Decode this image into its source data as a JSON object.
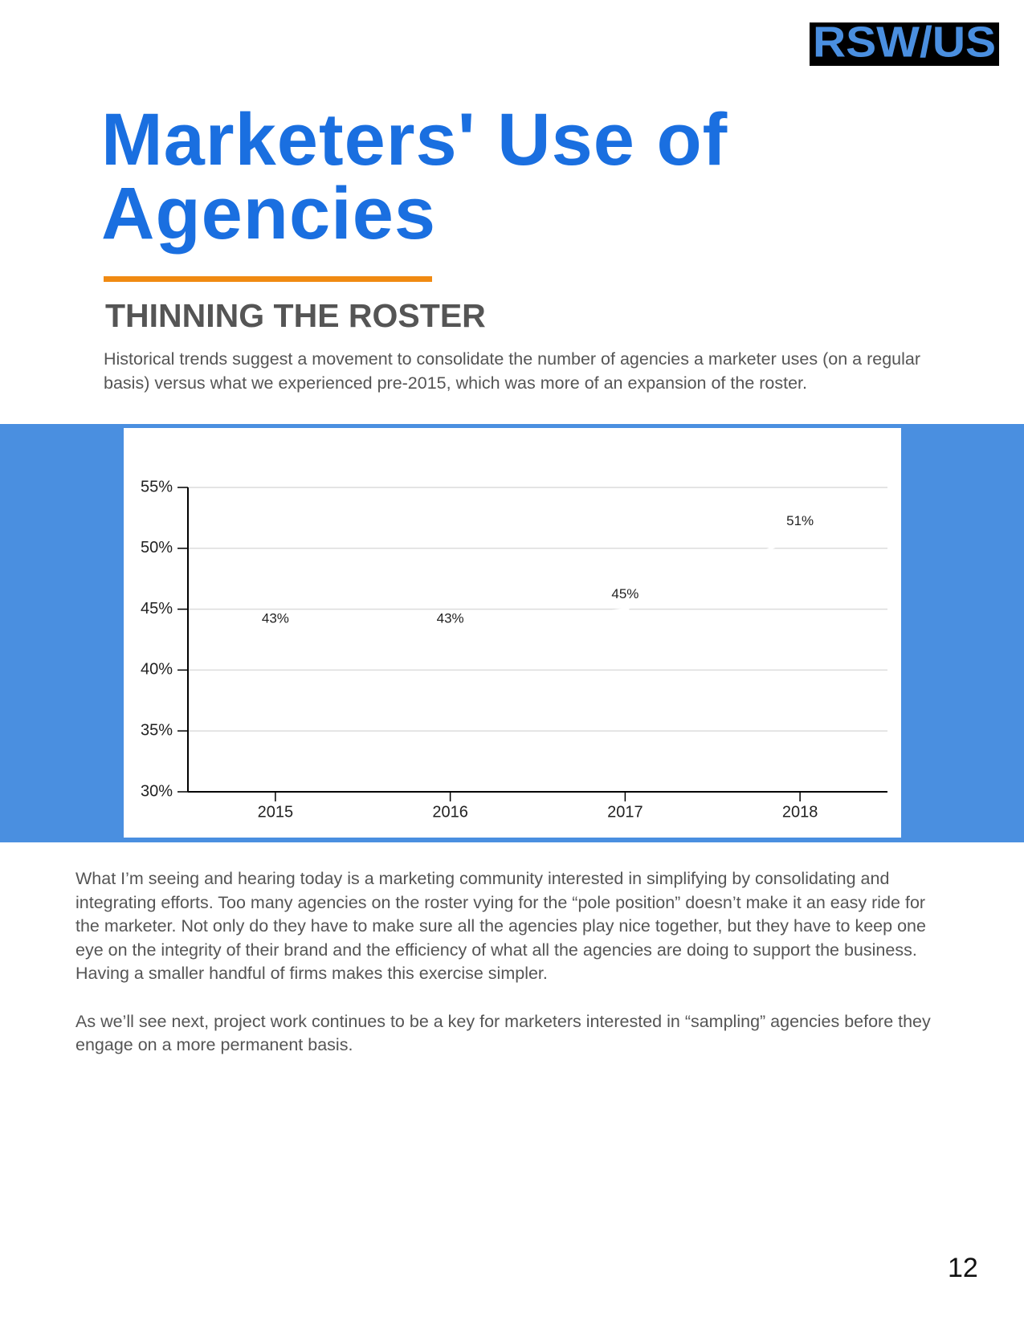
{
  "logo": "RSW/US",
  "title_lines": [
    "Marketers' Use of",
    "Agencies"
  ],
  "subtitle": "THINNING THE ROSTER",
  "intro": "Historical trends suggest a movement to consolidate the number of agencies a marketer uses (on a regular basis) versus what we experienced pre-2015, which was more of an expansion of the roster.",
  "chart_data": {
    "type": "line",
    "categories": [
      "2015",
      "2016",
      "2017",
      "2018"
    ],
    "series": [
      {
        "name": null,
        "color": "#ffffff",
        "values": [
          43,
          43,
          45,
          51
        ],
        "value_labels": [
          "43%",
          "43%",
          "45%",
          "51%"
        ]
      }
    ],
    "ylim": [
      30,
      55
    ],
    "yticks": [
      {
        "value": 30,
        "label": "30%"
      },
      {
        "value": 35,
        "label": "35%"
      },
      {
        "value": 40,
        "label": "40%"
      },
      {
        "value": 45,
        "label": "45%"
      },
      {
        "value": 50,
        "label": "50%"
      },
      {
        "value": 55,
        "label": "55%"
      }
    ],
    "grid": true
  },
  "body": [
    "What I’m seeing and hearing today is a marketing community interested in simplifying by consolidating and integrating efforts.  Too many agencies on the roster vying for the “pole position” doesn’t make it an easy ride for the marketer.  Not only do they have to make sure all the agencies play nice together, but they have to keep one eye on the integrity of their brand and the efficiency of what all the agencies are doing to support the business.  Having a smaller handful of firms makes this exercise simpler.",
    "As we’ll see next, project work continues to be a key for marketers interested in “sampling” agencies before they engage on a more permanent basis."
  ],
  "page_number": "12"
}
